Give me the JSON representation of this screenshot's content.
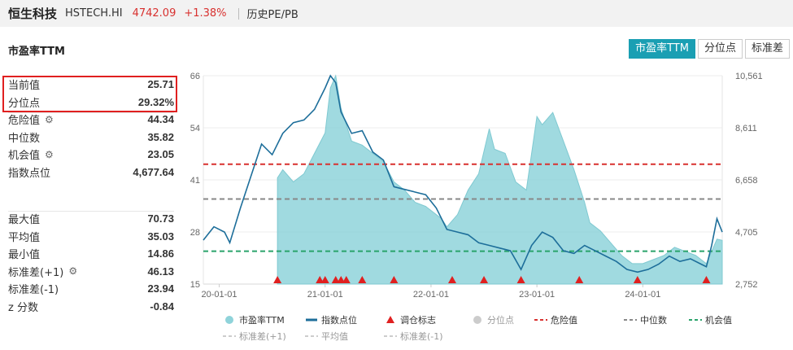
{
  "header": {
    "name": "恒生科技",
    "code": "HSTECH.HI",
    "price": "4742.09",
    "change": "+1.38%",
    "history_link": "历史PE/PB"
  },
  "section_title": "市盈率TTM",
  "buttons": [
    {
      "label": "市盈率TTM",
      "active": true
    },
    {
      "label": "分位点",
      "active": false
    },
    {
      "label": "标准差",
      "active": false
    }
  ],
  "stats_top": [
    {
      "label": "当前值",
      "value": "25.71",
      "gear": false
    },
    {
      "label": "分位点",
      "value": "29.32%",
      "gear": false
    },
    {
      "label": "危险值",
      "value": "44.34",
      "gear": true
    },
    {
      "label": "中位数",
      "value": "35.82",
      "gear": false
    },
    {
      "label": "机会值",
      "value": "23.05",
      "gear": true
    },
    {
      "label": "指数点位",
      "value": "4,677.64",
      "gear": false
    }
  ],
  "stats_bottom": [
    {
      "label": "最大值",
      "value": "70.73",
      "gear": false
    },
    {
      "label": "平均值",
      "value": "35.03",
      "gear": false
    },
    {
      "label": "最小值",
      "value": "14.86",
      "gear": false
    },
    {
      "label": "标准差(+1)",
      "value": "46.13",
      "gear": true
    },
    {
      "label": "标准差(-1)",
      "value": "23.94",
      "gear": false
    },
    {
      "label": "z 分数",
      "value": "-0.84",
      "gear": false
    }
  ],
  "colors": {
    "accent": "#1a9fb3",
    "pe_fill": "#8fd3da",
    "index_line": "#1d6e9a",
    "danger": "#d8312f",
    "median": "#888888",
    "opportunity": "#2aa36b",
    "faded": "#cccccc",
    "rebalance": "#e02020"
  },
  "chart_data": {
    "type": "area",
    "left_axis_ticks": [
      "66",
      "54",
      "41",
      "28",
      "15"
    ],
    "right_axis_ticks": [
      "10,561",
      "8,611",
      "6,658",
      "4,705",
      "2,752"
    ],
    "x_tick_labels": [
      "20-01-01",
      "21-01-01",
      "22-01-01",
      "23-01-01",
      "24-01-01"
    ],
    "left_ylim": [
      15,
      66
    ],
    "right_ylim": [
      2752,
      10561
    ],
    "x_range": [
      2019.85,
      2024.75
    ],
    "x_ticks_years": [
      2020,
      2021,
      2022,
      2023,
      2024
    ],
    "reference_lines": {
      "danger": 44.34,
      "median": 35.82,
      "opportunity": 23.05
    },
    "pe_series": {
      "name": "市盈率TTM",
      "x": [
        2020.55,
        2020.6,
        2020.7,
        2020.8,
        2020.9,
        2021.0,
        2021.05,
        2021.1,
        2021.15,
        2021.25,
        2021.35,
        2021.45,
        2021.55,
        2021.65,
        2021.75,
        2021.85,
        2021.95,
        2022.0,
        2022.1,
        2022.15,
        2022.25,
        2022.35,
        2022.45,
        2022.55,
        2022.6,
        2022.7,
        2022.8,
        2022.9,
        2023.0,
        2023.05,
        2023.15,
        2023.25,
        2023.35,
        2023.45,
        2023.5,
        2023.6,
        2023.7,
        2023.8,
        2023.9,
        2024.0,
        2024.1,
        2024.2,
        2024.3,
        2024.4,
        2024.5,
        2024.55,
        2024.6,
        2024.7,
        2024.75
      ],
      "y": [
        41,
        43,
        40,
        42,
        47,
        52,
        63,
        70,
        58,
        50,
        49,
        47,
        45,
        40,
        38,
        35,
        34,
        33,
        31,
        29,
        32,
        38,
        42,
        53,
        48,
        47,
        40,
        38,
        56,
        54,
        57,
        50,
        43,
        35,
        30,
        28,
        25,
        22,
        20,
        20,
        21,
        22,
        24,
        23,
        22,
        21,
        20,
        26,
        25.7
      ]
    },
    "index_series": {
      "name": "指数点位",
      "x": [
        2019.85,
        2019.95,
        2020.05,
        2020.1,
        2020.2,
        2020.3,
        2020.4,
        2020.5,
        2020.6,
        2020.7,
        2020.8,
        2020.9,
        2021.0,
        2021.05,
        2021.1,
        2021.15,
        2021.25,
        2021.35,
        2021.45,
        2021.55,
        2021.65,
        2021.75,
        2021.85,
        2021.95,
        2022.05,
        2022.15,
        2022.25,
        2022.35,
        2022.45,
        2022.55,
        2022.65,
        2022.75,
        2022.85,
        2022.95,
        2023.05,
        2023.15,
        2023.25,
        2023.35,
        2023.45,
        2023.55,
        2023.65,
        2023.75,
        2023.85,
        2023.95,
        2024.05,
        2024.15,
        2024.25,
        2024.35,
        2024.45,
        2024.55,
        2024.6,
        2024.65,
        2024.7,
        2024.75
      ],
      "y": [
        4400,
        4900,
        4700,
        4300,
        5600,
        6800,
        8000,
        7600,
        8400,
        8800,
        8900,
        9300,
        10100,
        10600,
        10300,
        9200,
        8400,
        8500,
        7700,
        7400,
        6400,
        6300,
        6200,
        6100,
        5600,
        4800,
        4700,
        4600,
        4300,
        4200,
        4100,
        4000,
        3300,
        4200,
        4700,
        4500,
        4000,
        3900,
        4200,
        4000,
        3800,
        3600,
        3300,
        3200,
        3300,
        3500,
        3800,
        3600,
        3700,
        3500,
        3400,
        4200,
        5200,
        4700
      ]
    },
    "rebalance_markers_x": [
      2020.55,
      2020.95,
      2021.0,
      2021.1,
      2021.15,
      2021.2,
      2021.35,
      2021.65,
      2022.2,
      2022.5,
      2022.85,
      2023.4,
      2023.95,
      2024.6
    ],
    "legend": [
      {
        "label": "市盈率TTM",
        "kind": "circle",
        "color_key": "pe_fill"
      },
      {
        "label": "指数点位",
        "kind": "line",
        "color_key": "index_line"
      },
      {
        "label": "调仓标志",
        "kind": "triangle",
        "color_key": "rebalance"
      },
      {
        "label": "分位点",
        "kind": "circle",
        "color_key": "faded"
      },
      {
        "label": "危险值",
        "kind": "dash",
        "color_key": "danger"
      },
      {
        "label": "中位数",
        "kind": "dash",
        "color_key": "median"
      },
      {
        "label": "机会值",
        "kind": "dash",
        "color_key": "opportunity"
      },
      {
        "label": "标准差(+1)",
        "kind": "dash",
        "color_key": "faded"
      },
      {
        "label": "平均值",
        "kind": "dash",
        "color_key": "faded"
      },
      {
        "label": "标准差(-1)",
        "kind": "dash",
        "color_key": "faded"
      }
    ]
  }
}
